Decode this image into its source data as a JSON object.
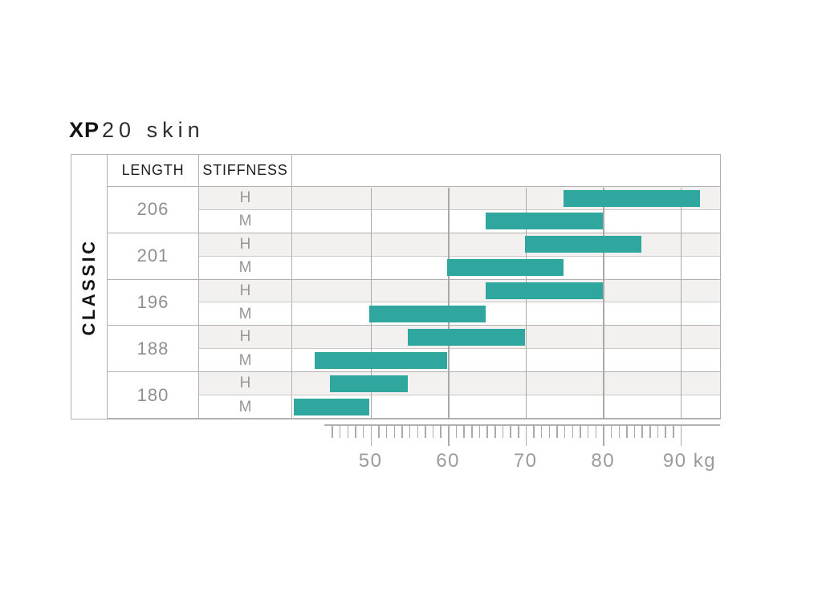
{
  "title": {
    "brand": "XP",
    "model": "20 skin"
  },
  "table": {
    "category_label": "CLASSIC",
    "length_header": "LENGTH",
    "stiffness_header": "STIFFNESS"
  },
  "axis": {
    "unit": "kg",
    "major_ticks": [
      50,
      60,
      70,
      80,
      90
    ],
    "unit_label_tick": 90,
    "minor_tick_step": 1,
    "minor_tick_start": 45,
    "minor_tick_end": 89,
    "ruler_line_start_kg": 44,
    "view_min": 40.1,
    "view_max": 95.1
  },
  "chart_data": {
    "type": "bar",
    "subtype": "horizontal-range-bars (weight recommendation chart)",
    "title": "XP 20 skin",
    "category_group": "CLASSIC",
    "xlabel": "kg",
    "xlim": [
      40.1,
      95.1
    ],
    "x_major_ticks": [
      50,
      60,
      70,
      80,
      90
    ],
    "x_minor_tick_step": 1,
    "grid": "vertical lines at major ticks",
    "legend": "none",
    "rows": [
      {
        "length": "206",
        "stiffness": "H",
        "from_kg": 75,
        "to_kg": 92.5
      },
      {
        "length": "206",
        "stiffness": "M",
        "from_kg": 65,
        "to_kg": 80
      },
      {
        "length": "201",
        "stiffness": "H",
        "from_kg": 70,
        "to_kg": 85
      },
      {
        "length": "201",
        "stiffness": "M",
        "from_kg": 60,
        "to_kg": 75
      },
      {
        "length": "196",
        "stiffness": "H",
        "from_kg": 65,
        "to_kg": 80
      },
      {
        "length": "196",
        "stiffness": "M",
        "from_kg": 50,
        "to_kg": 65
      },
      {
        "length": "188",
        "stiffness": "H",
        "from_kg": 55,
        "to_kg": 70
      },
      {
        "length": "188",
        "stiffness": "M",
        "from_kg": 43,
        "to_kg": 60
      },
      {
        "length": "180",
        "stiffness": "H",
        "from_kg": 45,
        "to_kg": 55
      },
      {
        "length": "180",
        "stiffness": "M",
        "from_kg": 40.3,
        "to_kg": 50
      }
    ]
  },
  "colors": {
    "bar": "#2fa79e",
    "h_row_background": "#f2f1ef",
    "grid_line": "#aba9a7",
    "table_border": "#b3b1af",
    "inner_row_line": "#cbc9c7",
    "muted_text": "#9b9b9b",
    "length_text": "#8f8f8f",
    "header_text": "#1d1d1d"
  }
}
